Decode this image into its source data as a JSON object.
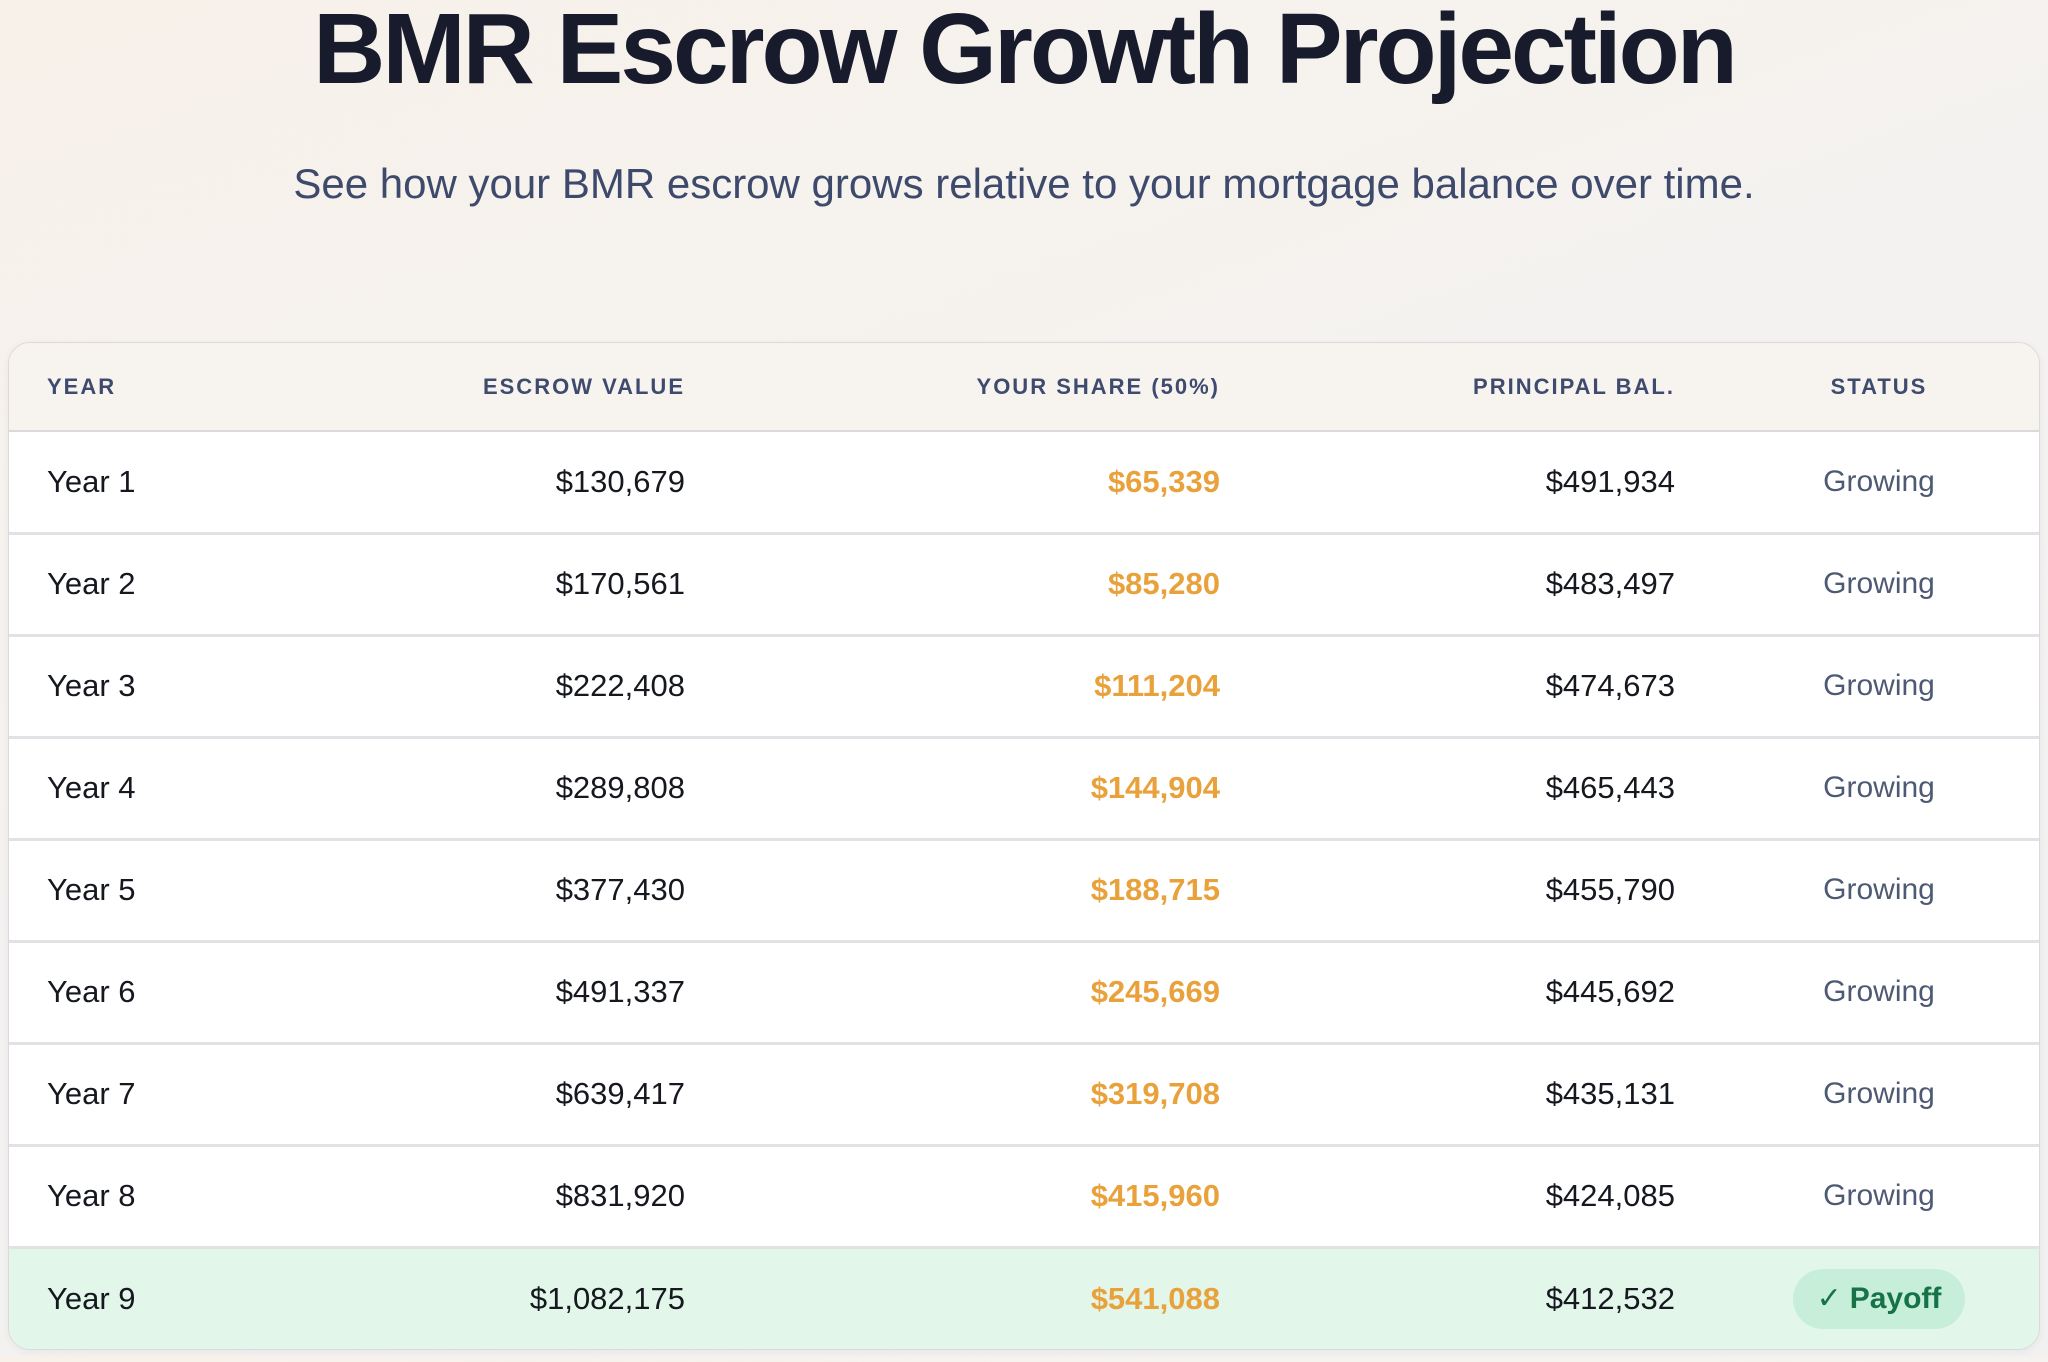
{
  "page": {
    "title": "BMR Escrow Growth Projection",
    "subtitle": "See how your BMR escrow grows relative to your mortgage balance over time."
  },
  "colors": {
    "title": "#171b2c",
    "subtitle": "#3e4a6c",
    "header_text": "#3f4b6e",
    "body_text": "#15181f",
    "share_amber": "#e9a23b",
    "status_text": "#4e5a74",
    "highlight_row_bg": "#e2f6ea",
    "payoff_badge_bg": "#c7eed9",
    "payoff_badge_text": "#157347"
  },
  "table": {
    "columns": [
      {
        "id": "year",
        "label": "YEAR",
        "align": "left"
      },
      {
        "id": "escrow",
        "label": "ESCROW VALUE",
        "align": "right"
      },
      {
        "id": "share",
        "label": "YOUR SHARE (50%)",
        "align": "right"
      },
      {
        "id": "principal",
        "label": "PRINCIPAL BAL.",
        "align": "right"
      },
      {
        "id": "status",
        "label": "STATUS",
        "align": "center"
      }
    ],
    "rows": [
      {
        "year": "Year 1",
        "escrow": "$130,679",
        "share": "$65,339",
        "principal": "$491,934",
        "status": "Growing",
        "highlight": false
      },
      {
        "year": "Year 2",
        "escrow": "$170,561",
        "share": "$85,280",
        "principal": "$483,497",
        "status": "Growing",
        "highlight": false
      },
      {
        "year": "Year 3",
        "escrow": "$222,408",
        "share": "$111,204",
        "principal": "$474,673",
        "status": "Growing",
        "highlight": false
      },
      {
        "year": "Year 4",
        "escrow": "$289,808",
        "share": "$144,904",
        "principal": "$465,443",
        "status": "Growing",
        "highlight": false
      },
      {
        "year": "Year 5",
        "escrow": "$377,430",
        "share": "$188,715",
        "principal": "$455,790",
        "status": "Growing",
        "highlight": false
      },
      {
        "year": "Year 6",
        "escrow": "$491,337",
        "share": "$245,669",
        "principal": "$445,692",
        "status": "Growing",
        "highlight": false
      },
      {
        "year": "Year 7",
        "escrow": "$639,417",
        "share": "$319,708",
        "principal": "$435,131",
        "status": "Growing",
        "highlight": false
      },
      {
        "year": "Year 8",
        "escrow": "$831,920",
        "share": "$415,960",
        "principal": "$424,085",
        "status": "Growing",
        "highlight": false
      },
      {
        "year": "Year 9",
        "escrow": "$1,082,175",
        "share": "$541,088",
        "principal": "$412,532",
        "status": "Payoff",
        "status_icon": "✓",
        "highlight": true
      }
    ]
  }
}
